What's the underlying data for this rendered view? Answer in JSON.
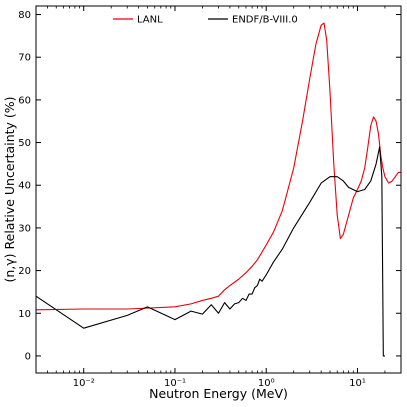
{
  "chart_data": {
    "type": "line",
    "xlabel": "Neutron Energy (MeV)",
    "ylabel": "(n,γ) Relative Uncertainty (%)",
    "x_scale": "log",
    "xlim": [
      0.003,
      30
    ],
    "ylim": [
      -4,
      82
    ],
    "x_ticks": [
      {
        "value": 0.01,
        "label": "10⁻²"
      },
      {
        "value": 0.1,
        "label": "10⁻¹"
      },
      {
        "value": 1,
        "label": "10⁰"
      },
      {
        "value": 10,
        "label": "10¹"
      }
    ],
    "y_ticks": [
      0,
      10,
      20,
      30,
      40,
      50,
      60,
      70,
      80
    ],
    "grid": false,
    "legend_position": "top-center",
    "series": [
      {
        "name": "LANL",
        "color": "#e8000b",
        "x": [
          0.003,
          0.01,
          0.03,
          0.05,
          0.1,
          0.15,
          0.2,
          0.25,
          0.3,
          0.35,
          0.4,
          0.5,
          0.6,
          0.7,
          0.8,
          1.0,
          1.2,
          1.5,
          2.0,
          2.5,
          3.0,
          3.5,
          4.0,
          4.3,
          4.6,
          5.0,
          5.5,
          6.0,
          6.5,
          7.0,
          8.0,
          9.0,
          10.0,
          11.0,
          12.0,
          13.0,
          14.0,
          15.0,
          16.0,
          17.0,
          18.0,
          19.0,
          20.0,
          22.0,
          24.0,
          26.0,
          28.0,
          30.0
        ],
        "y": [
          10.8,
          11.0,
          11.0,
          11.2,
          11.5,
          12.2,
          13.0,
          13.5,
          14.0,
          15.5,
          16.5,
          18.0,
          19.5,
          21.0,
          22.5,
          26.0,
          29.0,
          34.0,
          44.0,
          55.0,
          65.0,
          73.0,
          77.5,
          78.0,
          74.0,
          62.0,
          45.0,
          33.0,
          27.5,
          28.5,
          33.0,
          37.0,
          39.0,
          41.0,
          44.0,
          49.0,
          54.0,
          56.0,
          55.0,
          52.0,
          47.0,
          44.0,
          42.0,
          40.5,
          41.0,
          42.0,
          43.0,
          43.0
        ]
      },
      {
        "name": "ENDF/B-VIII.0",
        "color": "#000000",
        "x": [
          0.003,
          0.01,
          0.03,
          0.05,
          0.1,
          0.15,
          0.2,
          0.25,
          0.3,
          0.35,
          0.4,
          0.45,
          0.5,
          0.55,
          0.6,
          0.65,
          0.7,
          0.75,
          0.8,
          0.85,
          0.9,
          1.0,
          1.2,
          1.5,
          2.0,
          3.0,
          4.0,
          5.0,
          6.0,
          7.0,
          8.0,
          10.0,
          12.0,
          14.0,
          16.0,
          17.5,
          18.5,
          19.2,
          20.0
        ],
        "y": [
          14.0,
          6.5,
          9.5,
          11.5,
          8.5,
          10.5,
          9.8,
          12.0,
          10.0,
          12.5,
          11.0,
          12.2,
          12.5,
          13.5,
          13.0,
          14.5,
          14.5,
          16.0,
          16.5,
          18.0,
          17.5,
          19.0,
          22.0,
          25.0,
          30.0,
          36.0,
          40.5,
          42.0,
          42.0,
          41.0,
          39.5,
          38.5,
          39.0,
          41.0,
          45.0,
          49.0,
          42.0,
          0.0,
          0.0
        ]
      }
    ]
  }
}
